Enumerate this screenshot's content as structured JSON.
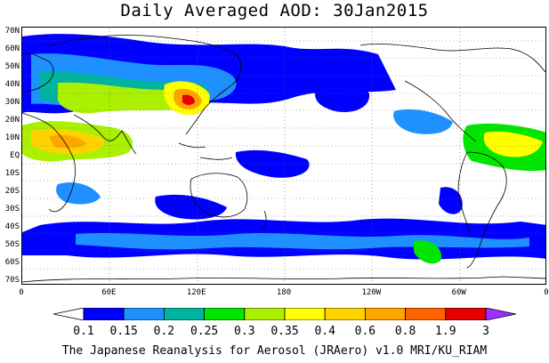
{
  "title": "Daily Averaged AOD: 30Jan2015",
  "map": {
    "lat_labels": [
      "70N",
      "60N",
      "50N",
      "40N",
      "30N",
      "20N",
      "10N",
      "EQ",
      "10S",
      "20S",
      "30S",
      "40S",
      "50S",
      "60S",
      "70S"
    ],
    "lon_labels": [
      "0",
      "60E",
      "120E",
      "180",
      "120W",
      "60W",
      "0"
    ],
    "grid": "dotted"
  },
  "colorbar": {
    "levels": [
      "0.1",
      "0.15",
      "0.2",
      "0.25",
      "0.3",
      "0.35",
      "0.4",
      "0.6",
      "0.8",
      "1.9",
      "3"
    ],
    "colors": [
      "#ffffff",
      "#0000ff",
      "#1e90ff",
      "#00b4a0",
      "#00e600",
      "#aaf000",
      "#ffff00",
      "#ffd200",
      "#ffa500",
      "#ff6400",
      "#e60000",
      "#9b30ff"
    ]
  },
  "credit": "The Japanese Reanalysis for Aerosol (JRAero) v1.0 MRI/KU_RIAM"
}
